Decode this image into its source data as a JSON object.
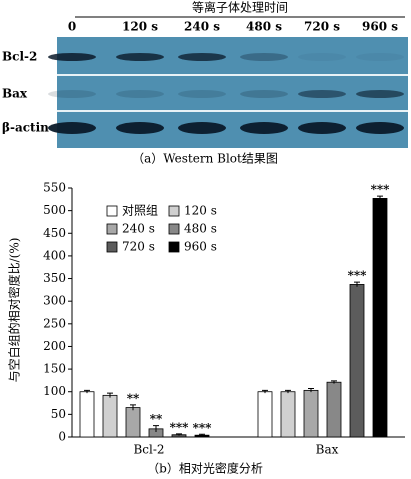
{
  "blot": {
    "title": "等离子体处理时间",
    "lanes": [
      "0",
      "120 s",
      "240 s",
      "480 s",
      "720 s",
      "960 s"
    ],
    "rows": [
      "Bcl-2",
      "Bax",
      "β-actin"
    ],
    "caption": "（a）Western Blot结果图"
  },
  "chart_data": {
    "type": "bar",
    "caption": "（b）相对光密度分析",
    "y_label": "与空白组的相对密度比/(%)",
    "categories": [
      "Bcl-2",
      "Bax"
    ],
    "series": [
      {
        "name": "对照组",
        "color": "#ffffff",
        "values": [
          100,
          100
        ],
        "errors": [
          3,
          3
        ],
        "labels": [
          null,
          null
        ]
      },
      {
        "name": "120 s",
        "color": "#d0d0d0",
        "values": [
          92,
          100
        ],
        "errors": [
          5,
          3
        ],
        "labels": [
          null,
          null
        ]
      },
      {
        "name": "240 s",
        "color": "#a8a8a8",
        "values": [
          65,
          103
        ],
        "errors": [
          6,
          4
        ],
        "labels": [
          "**",
          null
        ]
      },
      {
        "name": "480 s",
        "color": "#888888",
        "values": [
          18,
          121
        ],
        "errors": [
          7,
          3
        ],
        "labels": [
          "**",
          null
        ]
      },
      {
        "name": "720 s",
        "color": "#5c5c5c",
        "values": [
          5,
          337
        ],
        "errors": [
          2,
          5
        ],
        "labels": [
          "***",
          "***"
        ]
      },
      {
        "name": "960 s",
        "color": "#000000",
        "values": [
          4,
          527
        ],
        "errors": [
          2,
          5
        ],
        "labels": [
          "***",
          "***"
        ]
      }
    ],
    "ylim": [
      0,
      550
    ],
    "yticks": [
      0,
      50,
      100,
      150,
      200,
      250,
      300,
      350,
      400,
      450,
      500,
      550
    ],
    "legend": "upper left"
  }
}
